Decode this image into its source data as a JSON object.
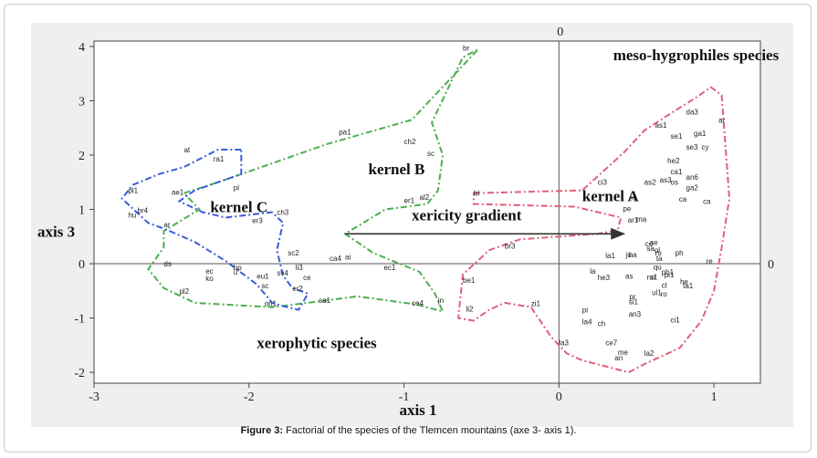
{
  "caption": {
    "label": "Figure 3:",
    "text": " Factorial of the species of the Tlemcen mountains (axe 3- axis 1)."
  },
  "chart_data": {
    "type": "scatter",
    "xlabel": "axis 1",
    "ylabel": "axis 3",
    "xlim": [
      -3.0,
      1.3
    ],
    "ylim": [
      -2.2,
      4.1
    ],
    "xticks": [
      "-3",
      "-2",
      "-1",
      "0",
      "1"
    ],
    "yticks": [
      "-2",
      "-1",
      "0",
      "1",
      "2",
      "3",
      "4"
    ],
    "axis_zero_labels": {
      "top": "0",
      "right": "0"
    },
    "annotations": [
      {
        "text": "meso-hygrophiles species",
        "x": 0.35,
        "y": 3.75
      },
      {
        "text": "kernel B",
        "x": -1.23,
        "y": 1.65
      },
      {
        "text": "kernel A",
        "x": 0.15,
        "y": 1.15
      },
      {
        "text": "kernel C",
        "x": -2.25,
        "y": 0.95
      },
      {
        "text": "xericity gradient",
        "x": -0.95,
        "y": 0.8
      },
      {
        "text": "xerophytic species",
        "x": -1.95,
        "y": -1.55
      }
    ],
    "arrow": {
      "from": [
        -1.38,
        0.55
      ],
      "to": [
        0.42,
        0.55
      ],
      "color": "#333333"
    },
    "points": [
      {
        "label": "br",
        "x": -0.62,
        "y": 3.92
      },
      {
        "label": "pa1",
        "x": -1.42,
        "y": 2.38
      },
      {
        "label": "ch2",
        "x": -1.0,
        "y": 2.2
      },
      {
        "label": "sc",
        "x": -0.85,
        "y": 1.98
      },
      {
        "label": "er1",
        "x": -1.0,
        "y": 1.12
      },
      {
        "label": "al2",
        "x": -0.9,
        "y": 1.18
      },
      {
        "label": "bl",
        "x": -0.55,
        "y": 1.25
      },
      {
        "label": "at",
        "x": -2.42,
        "y": 2.05
      },
      {
        "label": "ra1",
        "x": -2.23,
        "y": 1.88
      },
      {
        "label": "pl1",
        "x": -2.78,
        "y": 1.3
      },
      {
        "label": "ae1",
        "x": -2.5,
        "y": 1.27
      },
      {
        "label": "pl",
        "x": -2.1,
        "y": 1.35
      },
      {
        "label": "hu",
        "x": -2.78,
        "y": 0.85
      },
      {
        "label": "br4",
        "x": -2.72,
        "y": 0.93
      },
      {
        "label": "ch3",
        "x": -1.82,
        "y": 0.9
      },
      {
        "label": "er3",
        "x": -1.98,
        "y": 0.75
      },
      {
        "label": "ar",
        "x": -2.55,
        "y": 0.67
      },
      {
        "label": "ca4",
        "x": -1.48,
        "y": 0.05
      },
      {
        "label": "ai",
        "x": -1.38,
        "y": 0.08
      },
      {
        "label": "sc2",
        "x": -1.75,
        "y": 0.15
      },
      {
        "label": "li3",
        "x": -1.7,
        "y": -0.12
      },
      {
        "label": "ec1",
        "x": -1.13,
        "y": -0.12
      },
      {
        "label": "ds",
        "x": -2.55,
        "y": -0.05
      },
      {
        "label": "ec",
        "x": -2.28,
        "y": -0.18
      },
      {
        "label": "ko",
        "x": -2.28,
        "y": -0.32
      },
      {
        "label": "bp",
        "x": -2.1,
        "y": -0.12
      },
      {
        "label": "u",
        "x": -2.1,
        "y": -0.2
      },
      {
        "label": "eu1",
        "x": -1.95,
        "y": -0.28
      },
      {
        "label": "sv4",
        "x": -1.82,
        "y": -0.22
      },
      {
        "label": "sc",
        "x": -1.92,
        "y": -0.45
      },
      {
        "label": "ce",
        "x": -1.65,
        "y": -0.3
      },
      {
        "label": "er2",
        "x": -1.72,
        "y": -0.5
      },
      {
        "label": "pl2",
        "x": -2.45,
        "y": -0.55
      },
      {
        "label": "sa1",
        "x": -1.55,
        "y": -0.72
      },
      {
        "label": "on1",
        "x": -1.9,
        "y": -0.78
      },
      {
        "label": "ce4",
        "x": -0.95,
        "y": -0.77
      },
      {
        "label": "jn",
        "x": -0.78,
        "y": -0.72
      },
      {
        "label": "br3",
        "x": -0.35,
        "y": 0.28
      },
      {
        "label": "be1",
        "x": -0.62,
        "y": -0.35
      },
      {
        "label": "li2",
        "x": -0.6,
        "y": -0.88
      },
      {
        "label": "zi1",
        "x": -0.18,
        "y": -0.78
      },
      {
        "label": "as1",
        "x": 0.62,
        "y": 2.5
      },
      {
        "label": "da3",
        "x": 0.82,
        "y": 2.75
      },
      {
        "label": "se1",
        "x": 0.72,
        "y": 2.3
      },
      {
        "label": "ga1",
        "x": 0.87,
        "y": 2.35
      },
      {
        "label": "se3",
        "x": 0.82,
        "y": 2.1
      },
      {
        "label": "cy",
        "x": 0.92,
        "y": 2.1
      },
      {
        "label": "he2",
        "x": 0.7,
        "y": 1.85
      },
      {
        "label": "ca1",
        "x": 0.72,
        "y": 1.65
      },
      {
        "label": "ci3",
        "x": 0.25,
        "y": 1.45
      },
      {
        "label": "as2",
        "x": 0.55,
        "y": 1.45
      },
      {
        "label": "as3",
        "x": 0.65,
        "y": 1.5
      },
      {
        "label": "os",
        "x": 0.72,
        "y": 1.45
      },
      {
        "label": "an6",
        "x": 0.82,
        "y": 1.55
      },
      {
        "label": "ga2",
        "x": 0.82,
        "y": 1.35
      },
      {
        "label": "ca",
        "x": 0.93,
        "y": 1.1
      },
      {
        "label": "ar",
        "x": 1.03,
        "y": 2.6
      },
      {
        "label": "ph",
        "x": 0.75,
        "y": 0.15
      },
      {
        "label": "re",
        "x": 0.95,
        "y": 0.0
      },
      {
        "label": "la1",
        "x": 0.3,
        "y": 0.1
      },
      {
        "label": "ha",
        "x": 0.45,
        "y": 0.12
      },
      {
        "label": "ru",
        "x": 0.62,
        "y": 0.15
      },
      {
        "label": "pi1",
        "x": 0.68,
        "y": -0.25
      },
      {
        "label": "ta1",
        "x": 0.8,
        "y": -0.45
      },
      {
        "label": "he3",
        "x": 0.25,
        "y": -0.3
      },
      {
        "label": "la",
        "x": 0.2,
        "y": -0.18
      },
      {
        "label": "ul1",
        "x": 0.6,
        "y": -0.58
      },
      {
        "label": "si1",
        "x": 0.45,
        "y": -0.75
      },
      {
        "label": "an3",
        "x": 0.45,
        "y": -0.97
      },
      {
        "label": "pi",
        "x": 0.15,
        "y": -0.9
      },
      {
        "label": "la4",
        "x": 0.15,
        "y": -1.12
      },
      {
        "label": "ch",
        "x": 0.25,
        "y": -1.15
      },
      {
        "label": "ci1",
        "x": 0.72,
        "y": -1.08
      },
      {
        "label": "la3",
        "x": 0.0,
        "y": -1.5
      },
      {
        "label": "ce7",
        "x": 0.3,
        "y": -1.5
      },
      {
        "label": "me",
        "x": 0.38,
        "y": -1.68
      },
      {
        "label": "an",
        "x": 0.36,
        "y": -1.78
      },
      {
        "label": "la2",
        "x": 0.55,
        "y": -1.7
      }
    ],
    "dense_cluster_labels": [
      "ae",
      "as",
      "sa",
      "pe",
      "ta",
      "ma",
      "ro",
      "si",
      "cl",
      "ol",
      "pr",
      "ca",
      "ju",
      "he",
      "co",
      "ph1",
      "er",
      "ru1",
      "qu",
      "ar1"
    ],
    "polygons": [
      {
        "name": "kernel-a-hull",
        "color": "#e0607a",
        "points": [
          [
            -0.55,
            1.3
          ],
          [
            0.15,
            1.35
          ],
          [
            0.42,
            2.05
          ],
          [
            0.55,
            2.45
          ],
          [
            0.75,
            2.82
          ],
          [
            0.88,
            3.05
          ],
          [
            0.98,
            3.25
          ],
          [
            1.05,
            3.1
          ],
          [
            1.1,
            1.2
          ],
          [
            1.05,
            0.3
          ],
          [
            1.0,
            -0.5
          ],
          [
            0.92,
            -1.05
          ],
          [
            0.78,
            -1.55
          ],
          [
            0.55,
            -1.85
          ],
          [
            0.45,
            -2.0
          ],
          [
            0.15,
            -1.78
          ],
          [
            0.05,
            -1.65
          ],
          [
            -0.05,
            -1.35
          ],
          [
            -0.18,
            -0.8
          ],
          [
            -0.35,
            -0.72
          ],
          [
            -0.45,
            -0.85
          ],
          [
            -0.55,
            -1.05
          ],
          [
            -0.65,
            -1.0
          ],
          [
            -0.62,
            -0.2
          ],
          [
            -0.45,
            0.25
          ],
          [
            -0.25,
            0.45
          ],
          [
            0.25,
            0.55
          ],
          [
            0.38,
            0.62
          ],
          [
            0.4,
            0.85
          ],
          [
            0.1,
            1.05
          ],
          [
            -0.55,
            1.1
          ]
        ]
      },
      {
        "name": "kernel-b-hull",
        "color": "#4caf50",
        "points": [
          [
            -2.42,
            1.3
          ],
          [
            -2.2,
            1.5
          ],
          [
            -1.5,
            2.2
          ],
          [
            -0.95,
            2.65
          ],
          [
            -0.52,
            3.95
          ],
          [
            -0.62,
            3.8
          ],
          [
            -0.82,
            2.6
          ],
          [
            -0.75,
            2.0
          ],
          [
            -0.78,
            1.35
          ],
          [
            -0.85,
            1.1
          ],
          [
            -1.12,
            1.0
          ],
          [
            -1.38,
            0.55
          ],
          [
            -1.2,
            0.2
          ],
          [
            -0.9,
            -0.15
          ],
          [
            -0.8,
            -0.55
          ],
          [
            -0.75,
            -0.88
          ],
          [
            -0.92,
            -0.75
          ],
          [
            -1.3,
            -0.6
          ],
          [
            -1.62,
            -0.72
          ],
          [
            -1.85,
            -0.8
          ],
          [
            -2.35,
            -0.72
          ],
          [
            -2.55,
            -0.45
          ],
          [
            -2.65,
            -0.1
          ],
          [
            -2.55,
            0.3
          ],
          [
            -2.55,
            0.6
          ],
          [
            -2.32,
            1.0
          ],
          [
            -2.42,
            1.3
          ]
        ]
      },
      {
        "name": "kernel-c-hull",
        "color": "#3b5bdb",
        "points": [
          [
            -2.05,
            2.1
          ],
          [
            -2.2,
            2.1
          ],
          [
            -2.42,
            1.78
          ],
          [
            -2.58,
            1.65
          ],
          [
            -2.75,
            1.45
          ],
          [
            -2.82,
            1.2
          ],
          [
            -2.65,
            0.75
          ],
          [
            -2.55,
            0.65
          ],
          [
            -2.35,
            0.4
          ],
          [
            -2.15,
            0.05
          ],
          [
            -1.95,
            -0.38
          ],
          [
            -1.85,
            -0.72
          ],
          [
            -1.78,
            -0.78
          ],
          [
            -1.68,
            -0.85
          ],
          [
            -1.62,
            -0.55
          ],
          [
            -1.72,
            -0.45
          ],
          [
            -1.78,
            -0.22
          ],
          [
            -1.82,
            0.25
          ],
          [
            -1.78,
            0.75
          ],
          [
            -1.85,
            0.95
          ],
          [
            -2.15,
            0.85
          ],
          [
            -2.3,
            0.95
          ],
          [
            -2.45,
            1.15
          ],
          [
            -2.35,
            1.35
          ],
          [
            -2.05,
            1.65
          ],
          [
            -2.05,
            2.1
          ]
        ]
      }
    ]
  }
}
